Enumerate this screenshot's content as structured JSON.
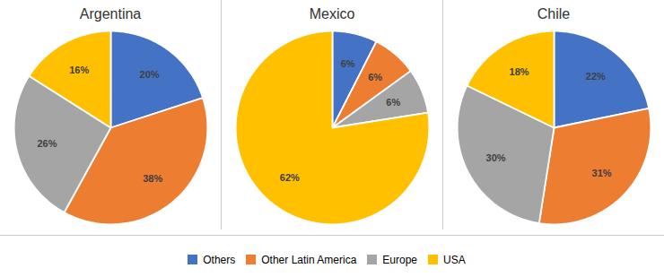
{
  "chart_data": [
    {
      "type": "pie",
      "title": "Argentina",
      "categories": [
        "Others",
        "Other Latin America",
        "Europe",
        "USA"
      ],
      "values": [
        20,
        38,
        26,
        16
      ],
      "value_labels": [
        "20%",
        "38%",
        "26%",
        "16%"
      ],
      "colors": [
        "#4472C4",
        "#ED7D31",
        "#A5A5A5",
        "#FFC000"
      ],
      "data_labels": true,
      "legend": "bottom"
    },
    {
      "type": "pie",
      "title": "Mexico",
      "categories": [
        "Others",
        "Other Latin America",
        "Europe",
        "USA"
      ],
      "values": [
        6,
        6,
        6,
        62
      ],
      "value_labels": [
        "6%",
        "6%",
        "6%",
        "62%"
      ],
      "colors": [
        "#4472C4",
        "#ED7D31",
        "#A5A5A5",
        "#FFC000"
      ],
      "data_labels": true,
      "legend": "bottom"
    },
    {
      "type": "pie",
      "title": "Chile",
      "categories": [
        "Others",
        "Other Latin America",
        "Europe",
        "USA"
      ],
      "values": [
        22,
        31,
        30,
        18
      ],
      "value_labels": [
        "22%",
        "31%",
        "30%",
        "18%"
      ],
      "colors": [
        "#4472C4",
        "#ED7D31",
        "#A5A5A5",
        "#FFC000"
      ],
      "data_labels": true,
      "legend": "bottom"
    }
  ]
}
